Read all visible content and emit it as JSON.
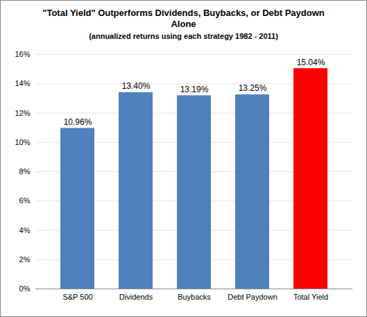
{
  "chart_data": {
    "type": "bar",
    "title": "\"Total Yield\" Outperforms Dividends, Buybacks, or Debt Paydown Alone",
    "subtitle": "(annualized returns using each strategy 1982 - 2011)",
    "categories": [
      "S&P 500",
      "Dividends",
      "Buybacks",
      "Debt Paydown",
      "Total Yield"
    ],
    "values": [
      10.96,
      13.4,
      13.19,
      13.25,
      15.04
    ],
    "value_labels": [
      "10.96%",
      "13.40%",
      "13.19%",
      "13.25%",
      "15.04%"
    ],
    "colors": [
      "#4f81bd",
      "#4f81bd",
      "#4f81bd",
      "#4f81bd",
      "#ff0000"
    ],
    "ylim": [
      0,
      16
    ],
    "yticks": [
      {
        "value": 0,
        "label": "0%"
      },
      {
        "value": 2,
        "label": "2%"
      },
      {
        "value": 4,
        "label": "4%"
      },
      {
        "value": 6,
        "label": "6%"
      },
      {
        "value": 8,
        "label": "8%"
      },
      {
        "value": 10,
        "label": "10%"
      },
      {
        "value": 12,
        "label": "12%"
      },
      {
        "value": 14,
        "label": "14%"
      },
      {
        "value": 16,
        "label": "16%"
      }
    ],
    "grid": true,
    "data_labels": true
  }
}
